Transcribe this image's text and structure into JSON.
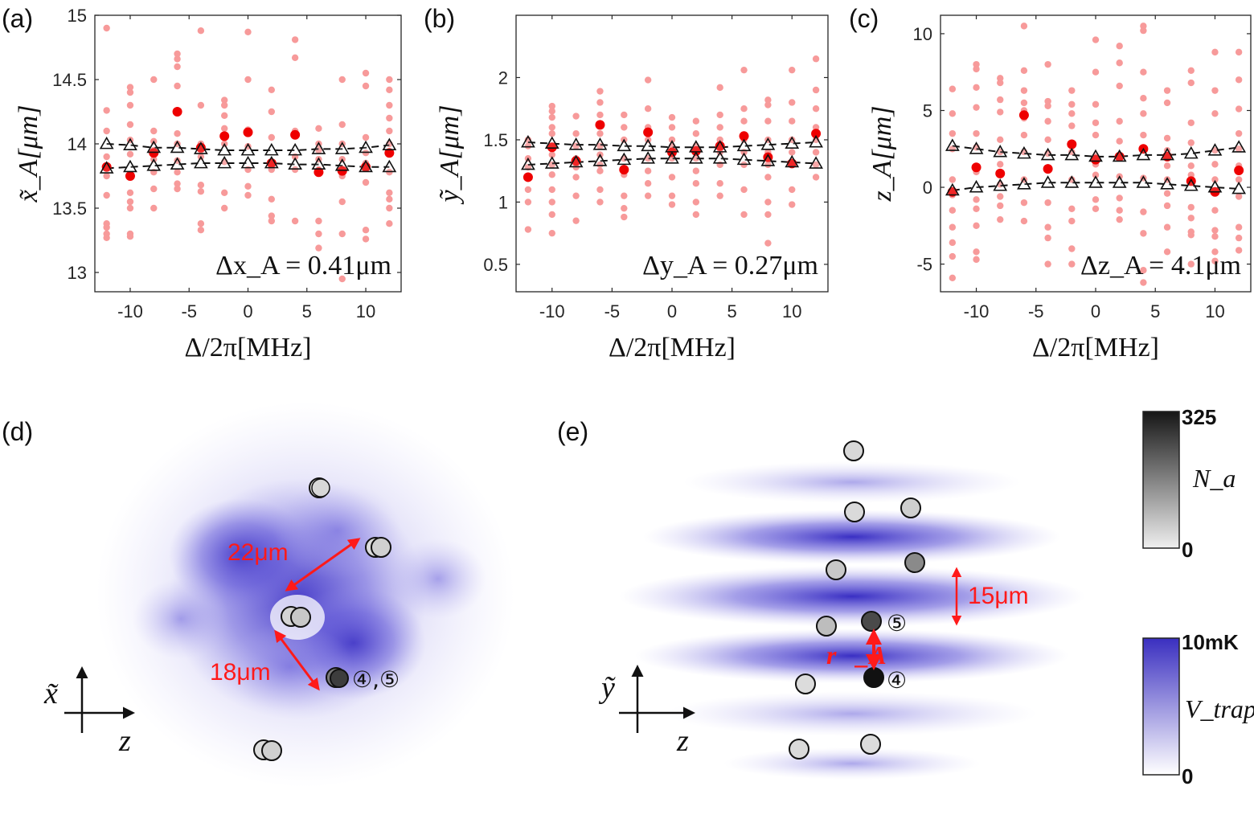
{
  "chart_data": [
    {
      "id": "a",
      "type": "scatter",
      "panel_label": "(a)",
      "xlabel": "Δ/2π[MHz]",
      "ylabel": "x̃_A[μm]",
      "xlim": [
        -13,
        13
      ],
      "ylim": [
        12.85,
        15.0
      ],
      "xticks": [
        -10,
        -5,
        0,
        5,
        10
      ],
      "xtick_labels": [
        "-10",
        "-5",
        "0",
        "5",
        "10"
      ],
      "yticks": [
        13,
        13.5,
        14,
        14.5,
        15
      ],
      "ytick_labels": [
        "13",
        "13.5",
        "14",
        "14.5",
        "15"
      ],
      "annotation": "Δx_A = 0.41μm",
      "x": [
        -12,
        -10,
        -8,
        -6,
        -4,
        -2,
        0,
        2,
        4,
        6,
        8,
        10,
        12
      ],
      "shots": [
        [
          14.9,
          14.26,
          14.1,
          13.9,
          13.75,
          13.6,
          13.38,
          13.35,
          13.3,
          13.27
        ],
        [
          14.44,
          14.4,
          14.3,
          14.15,
          14.03,
          13.92,
          13.62,
          13.55,
          13.5,
          13.3,
          13.28
        ],
        [
          14.5,
          14.1,
          14.02,
          13.95,
          13.88,
          13.78,
          13.65,
          13.5
        ],
        [
          14.7,
          14.66,
          14.6,
          14.45,
          14.08,
          14.0,
          13.87,
          13.78,
          13.69,
          13.65
        ],
        [
          14.88,
          14.3,
          14.0,
          13.95,
          13.9,
          13.68,
          13.63,
          13.38,
          13.33
        ],
        [
          14.34,
          14.3,
          14.22,
          14.12,
          14.0,
          13.86,
          13.62,
          13.5
        ],
        [
          14.87,
          14.5,
          14.11,
          13.98,
          13.8,
          13.67,
          13.6
        ],
        [
          14.42,
          14.25,
          14.05,
          13.85,
          13.8,
          13.57,
          13.44,
          13.4
        ],
        [
          14.81,
          14.67,
          14.1,
          13.9,
          13.8,
          13.4
        ],
        [
          14.12,
          14.0,
          13.95,
          13.88,
          13.8,
          13.4,
          13.3,
          13.19
        ],
        [
          14.5,
          14.15,
          14.0,
          13.88,
          13.75,
          13.55,
          13.3,
          12.95
        ],
        [
          14.55,
          14.45,
          14.05,
          13.93,
          13.85,
          13.7,
          13.33,
          13.26
        ],
        [
          14.5,
          14.42,
          14.3,
          14.2,
          14.1,
          14.0,
          13.78,
          13.62,
          13.57,
          13.5,
          13.38
        ]
      ],
      "means": [
        13.82,
        13.75,
        13.93,
        14.25,
        13.97,
        14.06,
        14.09,
        13.85,
        14.07,
        13.78,
        13.79,
        13.82,
        13.93
      ],
      "fit_upper": [
        14.0,
        13.99,
        13.97,
        13.97,
        13.96,
        13.95,
        13.95,
        13.95,
        13.95,
        13.96,
        13.96,
        13.97,
        13.99
      ],
      "fit_lower": [
        13.81,
        13.82,
        13.83,
        13.84,
        13.85,
        13.85,
        13.85,
        13.85,
        13.84,
        13.84,
        13.83,
        13.82,
        13.82
      ]
    },
    {
      "id": "b",
      "type": "scatter",
      "panel_label": "(b)",
      "xlabel": "Δ/2π[MHz]",
      "ylabel": "ỹ_A[μm]",
      "xlim": [
        -13,
        13
      ],
      "ylim": [
        0.28,
        2.5
      ],
      "xticks": [
        -10,
        -5,
        0,
        5,
        10
      ],
      "xtick_labels": [
        "-10",
        "-5",
        "0",
        "5",
        "10"
      ],
      "yticks": [
        0.5,
        1,
        1.5,
        2
      ],
      "ytick_labels": [
        "0.5",
        "1",
        "1.5",
        "2"
      ],
      "annotation": "Δy_A = 0.27μm",
      "x": [
        -12,
        -10,
        -8,
        -6,
        -4,
        -2,
        0,
        2,
        4,
        6,
        8,
        10,
        12
      ],
      "shots": [
        [
          1.5,
          1.45,
          1.35,
          1.28,
          1.2,
          1.1,
          1.0,
          0.78
        ],
        [
          1.77,
          1.73,
          1.68,
          1.6,
          1.55,
          1.45,
          1.38,
          1.3,
          1.22,
          1.1,
          1.0,
          0.9,
          0.75
        ],
        [
          1.69,
          1.55,
          1.45,
          1.35,
          1.28,
          1.2,
          1.05,
          0.85
        ],
        [
          1.89,
          1.8,
          1.7,
          1.55,
          1.45,
          1.38,
          1.3,
          1.25,
          1.1,
          1.0
        ],
        [
          1.7,
          1.6,
          1.5,
          1.35,
          1.22,
          1.05,
          0.95,
          0.88
        ],
        [
          1.98,
          1.75,
          1.6,
          1.5,
          1.35,
          1.25,
          1.15,
          1.05
        ],
        [
          1.68,
          1.6,
          1.5,
          1.45,
          1.35,
          1.2,
          1.05,
          0.98
        ],
        [
          1.65,
          1.55,
          1.45,
          1.35,
          1.25,
          1.15,
          1.0,
          0.9
        ],
        [
          1.92,
          1.7,
          1.6,
          1.5,
          1.4,
          1.3,
          1.15,
          1.05
        ],
        [
          2.06,
          1.75,
          1.65,
          1.5,
          1.4,
          1.3,
          1.1,
          0.9
        ],
        [
          1.82,
          1.78,
          1.65,
          1.5,
          1.4,
          1.3,
          1.2,
          1.0,
          0.9,
          0.67
        ],
        [
          2.06,
          1.8,
          1.65,
          1.5,
          1.4,
          1.3,
          1.1,
          0.98
        ],
        [
          2.15,
          1.9,
          1.75,
          1.6,
          1.5,
          1.4,
          1.3,
          1.2
        ]
      ],
      "means": [
        1.2,
        1.44,
        1.33,
        1.62,
        1.26,
        1.56,
        1.4,
        1.41,
        1.45,
        1.53,
        1.36,
        1.31,
        1.55
      ],
      "fit_upper": [
        1.48,
        1.47,
        1.46,
        1.46,
        1.45,
        1.45,
        1.44,
        1.44,
        1.44,
        1.45,
        1.46,
        1.47,
        1.48
      ],
      "fit_lower": [
        1.3,
        1.31,
        1.32,
        1.33,
        1.34,
        1.35,
        1.35,
        1.35,
        1.35,
        1.34,
        1.33,
        1.32,
        1.31
      ]
    },
    {
      "id": "c",
      "type": "scatter",
      "panel_label": "(c)",
      "xlabel": "Δ/2π[MHz]",
      "ylabel": "z_A[μm]",
      "xlim": [
        -13,
        13
      ],
      "ylim": [
        -6.8,
        11.2
      ],
      "xticks": [
        -10,
        -5,
        0,
        5,
        10
      ],
      "xtick_labels": [
        "-10",
        "-5",
        "0",
        "5",
        "10"
      ],
      "yticks": [
        -5,
        0,
        5,
        10
      ],
      "ytick_labels": [
        "-5",
        "0",
        "5",
        "10"
      ],
      "annotation": "Δz_A = 4.1μm",
      "x": [
        -12,
        -10,
        -8,
        -6,
        -4,
        -2,
        0,
        2,
        4,
        6,
        8,
        10,
        12
      ],
      "shots": [
        [
          6.4,
          4.8,
          3.5,
          2.5,
          0.5,
          -0.5,
          -1.5,
          -2.6,
          -3.6,
          -4.5,
          -5.9
        ],
        [
          8.0,
          7.7,
          6.5,
          5.2,
          3.5,
          2.6,
          1.0,
          -0.8,
          -1.4,
          -2.5,
          -4.2,
          -4.7
        ],
        [
          7.1,
          6.8,
          5.7,
          4.9,
          3.1,
          2.3,
          1.5,
          0.2,
          -0.6,
          -1.2,
          -2.1
        ],
        [
          10.5,
          7.6,
          6.3,
          5.5,
          5.0,
          4.5,
          3.4,
          2.3,
          0.5,
          -1.0,
          -2.2
        ],
        [
          8.0,
          5.6,
          5.3,
          4.3,
          3.1,
          2.2,
          -1.0,
          -2.6,
          -3.3,
          -5.0
        ],
        [
          6.3,
          5.4,
          4.8,
          4.0,
          2.3,
          0.5,
          -1.4,
          -2.2,
          -4.0,
          -5.0
        ],
        [
          9.6,
          7.5,
          5.4,
          4.2,
          3.4,
          2.0,
          1.5,
          0.8,
          -0.8,
          -1.4
        ],
        [
          9.2,
          8.1,
          6.6,
          4.3,
          3.0,
          1.9,
          0.7,
          -0.7,
          -1.5,
          -2.1
        ],
        [
          10.5,
          10.2,
          7.5,
          5.8,
          4.8,
          3.4,
          0.6,
          -1.6,
          -3.0,
          -5.4,
          -6.2
        ],
        [
          6.3,
          5.5,
          3.2,
          2.4,
          1.4,
          0.5,
          -0.4,
          -1.2,
          -2.6,
          -4.2
        ],
        [
          7.6,
          6.8,
          4.2,
          2.9,
          1.4,
          0.8,
          -1.3,
          -2.0,
          -2.9,
          -3.1,
          -5.0
        ],
        [
          8.8,
          6.3,
          4.8,
          2.4,
          1.5,
          0.5,
          -1.5,
          -2.8,
          -3.2,
          -4.2,
          -4.8
        ],
        [
          8.8,
          7.0,
          5.1,
          3.5,
          2.5,
          1.4,
          0.5,
          -0.6,
          -2.6,
          -3.3,
          -4.1
        ]
      ],
      "means": [
        -0.3,
        1.3,
        0.9,
        4.7,
        1.2,
        2.8,
        1.8,
        2.0,
        2.5,
        2.0,
        0.4,
        -0.3,
        1.1
      ],
      "fit_upper": [
        2.7,
        2.5,
        2.3,
        2.2,
        2.1,
        2.1,
        2.0,
        2.0,
        2.1,
        2.1,
        2.2,
        2.4,
        2.6
      ],
      "fit_lower": [
        -0.2,
        0.0,
        0.1,
        0.2,
        0.3,
        0.3,
        0.3,
        0.3,
        0.3,
        0.2,
        0.1,
        0.0,
        -0.1
      ]
    }
  ],
  "panel_d": {
    "label": "(d)",
    "spacing1": "22μm",
    "spacing2": "18μm",
    "atom_label": "④,⑤",
    "axis_vertical": "x̃",
    "axis_horizontal": "z"
  },
  "panel_e": {
    "label": "(e)",
    "spacing": "15μm",
    "vector_label": "r⃗_A",
    "atom4_label": "④",
    "atom5_label": "⑤",
    "axis_vertical": "ỹ",
    "axis_horizontal": "z"
  },
  "colorbar_na": {
    "max": "325",
    "min": "0",
    "label": "N_a",
    "color_high": "#1a1a1a",
    "color_low": "#e8e8e8"
  },
  "colorbar_v": {
    "max": "10mK",
    "min": "0",
    "label": "V_trap",
    "color_high": "#3a2fc0",
    "color_low": "#ffffff"
  },
  "colors": {
    "shot": "#f79a9a",
    "mean": "#ee0000",
    "annotation_red": "#ff1a1a",
    "trap": "#4a3fd0"
  }
}
